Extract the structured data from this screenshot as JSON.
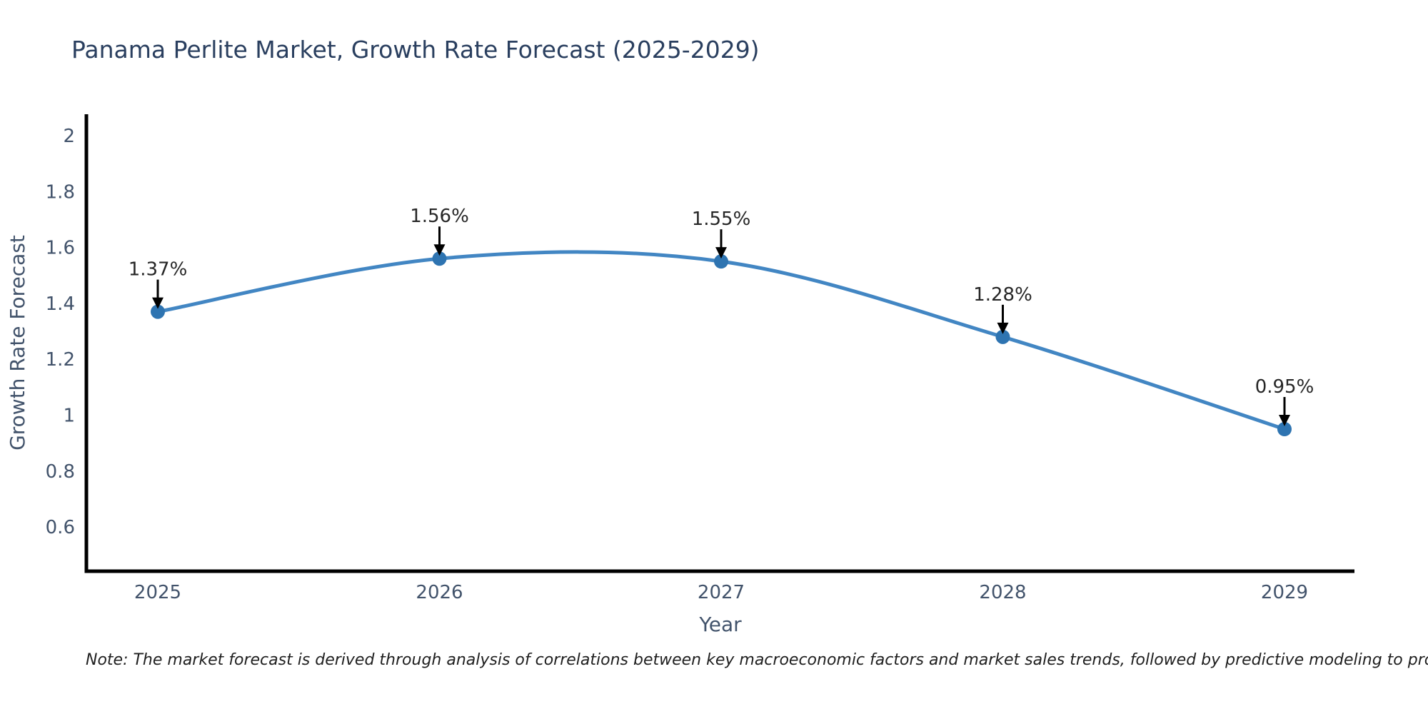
{
  "note": "Note: The market forecast is derived through analysis of correlations between key macroeconomic factors and market sales trends, followed by predictive modeling to project future sales",
  "chart_data": {
    "type": "line",
    "title": "Panama Perlite Market, Growth Rate Forecast (2025-2029)",
    "xlabel": "Year",
    "ylabel": "Growth Rate Forecast",
    "categories": [
      "2025",
      "2026",
      "2027",
      "2028",
      "2029"
    ],
    "series": [
      {
        "name": "Growth Rate Forecast",
        "values": [
          1.37,
          1.56,
          1.55,
          1.28,
          0.95
        ]
      }
    ],
    "point_labels": [
      "1.37%",
      "1.56%",
      "1.55%",
      "1.28%",
      "0.95%"
    ],
    "yticks": [
      0.6,
      0.8,
      1.0,
      1.2,
      1.4,
      1.6,
      1.8,
      2.0
    ],
    "ytick_labels": [
      "0.6",
      "0.8",
      "1",
      "1.2",
      "1.4",
      "1.6",
      "1.8",
      "2"
    ],
    "ylim": [
      0.44,
      2.08
    ],
    "grid": false,
    "legend": "none",
    "smooth": true,
    "line_color": "#4286c3",
    "marker_color": "#2e74b1",
    "annotation_color": "#000000",
    "axis_color": "#000000"
  }
}
